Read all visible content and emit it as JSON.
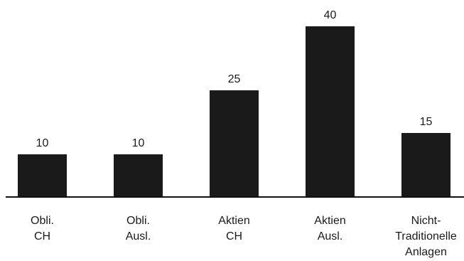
{
  "chart_data": {
    "type": "bar",
    "categories": [
      [
        "Obli.",
        "CH"
      ],
      [
        "Obli.",
        "Ausl."
      ],
      [
        "Aktien",
        "CH"
      ],
      [
        "Aktien",
        "Ausl."
      ],
      [
        "Nicht-",
        "Traditionelle",
        "Anlagen"
      ]
    ],
    "values": [
      10,
      10,
      25,
      40,
      15
    ],
    "value_labels": [
      "10",
      "10",
      "25",
      "40",
      "15"
    ],
    "title": "",
    "xlabel": "",
    "ylabel": "",
    "ylim": [
      0,
      40
    ],
    "grid": false,
    "legend": "none",
    "bar_color": "#1a1a1a"
  }
}
